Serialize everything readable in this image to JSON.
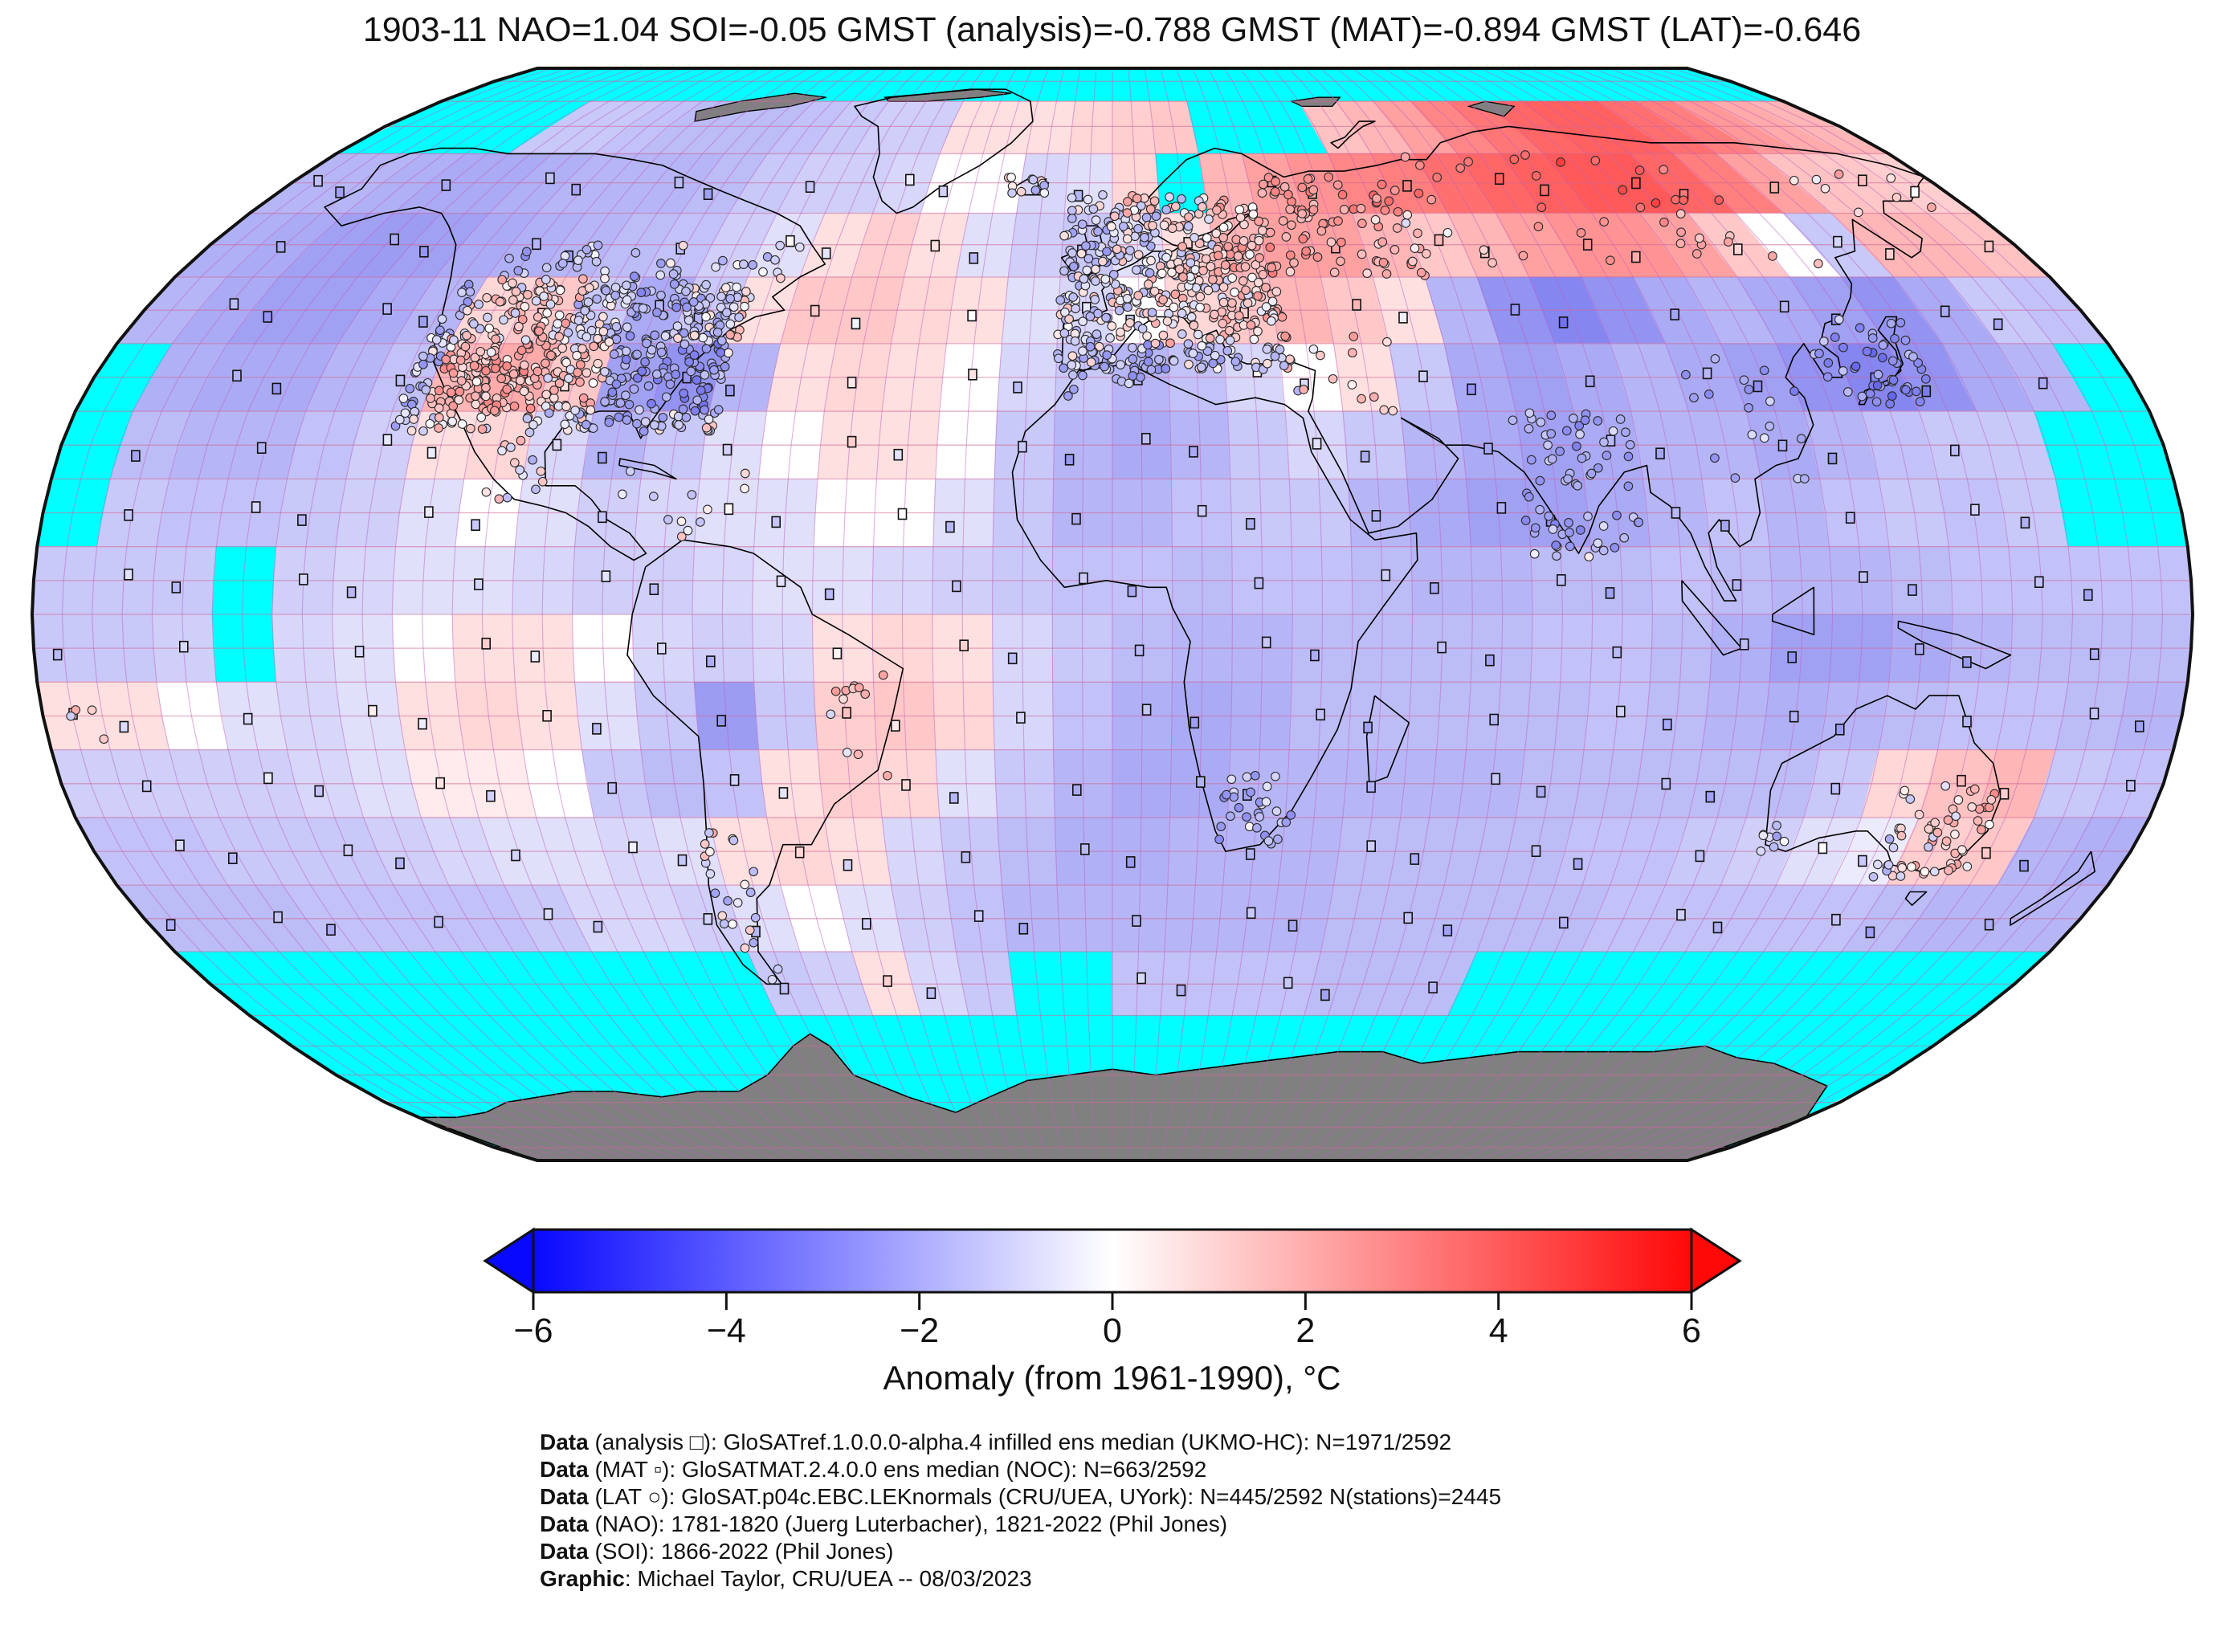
{
  "title": "1903-11 NAO=1.04 SOI=-0.05 GMST (analysis)=-0.788 GMST (MAT)=-0.894 GMST (LAT)=-0.646",
  "colorbar": {
    "label": "Anomaly (from 1961-1990), °C",
    "min": -6,
    "max": 6,
    "tick_values": [
      -6,
      -4,
      -2,
      0,
      2,
      4,
      6
    ],
    "tick_labels": [
      "−6",
      "−4",
      "−2",
      "0",
      "2",
      "4",
      "6"
    ],
    "left_color": "#0808ff",
    "mid_color": "#ffffff",
    "right_color": "#ff0808",
    "outline_color": "#111111"
  },
  "footnotes": [
    {
      "prefix": "Data",
      "rest": " (analysis □): GloSATref.1.0.0.0-alpha.4 infilled ens median (UKMO-HC): N=1971/2592"
    },
    {
      "prefix": "Data",
      "rest": " (MAT ▫): GloSATMAT.2.4.0.0 ens median (NOC): N=663/2592"
    },
    {
      "prefix": "Data",
      "rest": " (LAT ○): GloSAT.p04c.EBC.LEKnormals (CRU/UEA, UYork): N=445/2592 N(stations)=2445"
    },
    {
      "prefix": "Data",
      "rest": " (NAO): 1781-1820 (Juerg Luterbacher), 1821-2022 (Phil Jones)"
    },
    {
      "prefix": "Data",
      "rest": " (SOI): 1866-2022 (Phil Jones)"
    },
    {
      "prefix": "Graphic",
      "rest": ": Michael Taylor, CRU/UEA -- 08/03/2023"
    }
  ],
  "chart_data": {
    "type": "heatmap",
    "projection": "robinson",
    "period": "1903-11",
    "anomaly_reference": "1961-1990",
    "units": "°C",
    "stats": {
      "NAO": 1.04,
      "SOI": -0.05,
      "GMST_analysis": -0.788,
      "GMST_MAT": -0.894,
      "GMST_LAT": -0.646
    },
    "counts": {
      "analysis": "1971/2592",
      "MAT": "663/2592",
      "LAT": "445/2592",
      "stations": 2445
    },
    "colormap": "blue-white-red",
    "value_range": [
      -6,
      6
    ],
    "no_data_color": "#00ffff",
    "land_no_data_color": "#808080",
    "lat_start": 90,
    "lat_step": -10,
    "lon_start": -180,
    "lon_step": 10,
    "grid": [
      [
        null,
        null,
        null,
        null,
        null,
        null,
        null,
        null,
        null,
        null,
        null,
        null,
        null,
        null,
        null,
        null,
        null,
        null,
        null,
        null,
        null,
        null,
        null,
        null,
        null,
        null,
        null,
        null,
        null,
        null,
        null,
        null,
        null,
        null,
        null,
        null
      ],
      [
        null,
        null,
        null,
        null,
        -0.5,
        -0.5,
        -0.6,
        -0.7,
        -0.7,
        -0.7,
        -0.6,
        -0.5,
        -0.4,
        -0.4,
        0.2,
        0.2,
        0.2,
        0.3,
        0.4,
        0.5,
        null,
        null,
        null,
        0.6,
        0.8,
        1.2,
        1.8,
        2.2,
        2.6,
        2.8,
        2.8,
        2.4,
        2.0,
        1.4,
        1.0,
        0.8
      ],
      [
        -0.8,
        -0.8,
        -0.9,
        -1.0,
        -1.0,
        -0.9,
        -0.8,
        -0.8,
        -0.8,
        -0.7,
        -0.5,
        -0.4,
        -0.4,
        -0.3,
        0.0,
        0.0,
        -0.3,
        -0.2,
        0.3,
        null,
        0.8,
        1.2,
        1.5,
        1.8,
        2.0,
        2.4,
        2.6,
        2.8,
        3.0,
        3.0,
        2.6,
        2.0,
        1.2,
        0.6,
        0.5,
        0.4
      ],
      [
        -0.9,
        -1.0,
        -1.2,
        -1.3,
        -1.2,
        -1.0,
        -0.9,
        -0.8,
        -0.7,
        -0.6,
        -0.4,
        -0.2,
        0.2,
        0.4,
        0.2,
        -0.2,
        -0.4,
        -0.5,
        -0.2,
        0.2,
        0.8,
        1.2,
        1.2,
        0.8,
        0.5,
        0.8,
        1.2,
        1.5,
        1.5,
        1.2,
        0.5,
        0.0,
        -0.5,
        0.8,
        0.8,
        0.6
      ],
      [
        -0.8,
        -1.0,
        -1.2,
        -1.2,
        -1.0,
        -0.8,
        0.3,
        0.5,
        -0.5,
        -1.0,
        -0.5,
        0.2,
        0.5,
        0.5,
        0.3,
        0.2,
        -0.2,
        -0.3,
        0.0,
        0.3,
        0.5,
        0.8,
        0.5,
        0.2,
        -0.8,
        -1.5,
        -1.8,
        -1.5,
        -1.0,
        -0.8,
        -1.0,
        -1.2,
        -1.5,
        -1.0,
        -0.5,
        -0.6
      ],
      [
        null,
        -0.9,
        -1.0,
        -1.0,
        -0.8,
        -0.6,
        0.8,
        1.0,
        0.5,
        -1.2,
        -1.5,
        -0.8,
        0.2,
        0.3,
        0.2,
        0.0,
        -0.3,
        -0.5,
        -0.8,
        -0.6,
        -0.3,
        0.0,
        0.2,
        -0.5,
        -1.0,
        -1.2,
        -1.0,
        -0.8,
        -1.0,
        -1.2,
        -1.5,
        -1.8,
        -1.5,
        -1.0,
        -0.8,
        null
      ],
      [
        null,
        -0.7,
        -0.8,
        -0.8,
        -0.6,
        -0.4,
        0.2,
        0.3,
        -0.3,
        -0.8,
        -0.5,
        -0.2,
        0.0,
        0.2,
        0.2,
        0.0,
        -0.5,
        -0.8,
        -1.0,
        -0.8,
        -0.5,
        -0.3,
        -0.5,
        -0.8,
        -1.0,
        -1.2,
        -1.0,
        -0.8,
        -0.8,
        -1.0,
        -0.8,
        -0.6,
        -0.5,
        -0.5,
        null,
        null
      ],
      [
        null,
        -0.5,
        -0.6,
        -0.6,
        -0.5,
        -0.4,
        -0.2,
        0.0,
        -0.2,
        -0.4,
        -0.3,
        -0.2,
        -0.2,
        0.0,
        0.0,
        -0.2,
        -0.5,
        -0.8,
        -0.8,
        -0.6,
        -0.5,
        -0.5,
        -0.8,
        -1.0,
        -1.2,
        -1.2,
        -1.0,
        -0.8,
        -0.6,
        -0.8,
        -0.6,
        -0.5,
        -0.6,
        -0.5,
        null,
        null
      ],
      [
        -0.5,
        -0.5,
        -0.5,
        null,
        -0.4,
        -0.3,
        -0.2,
        -0.2,
        -0.3,
        -0.4,
        -0.4,
        -0.3,
        -0.2,
        -0.2,
        -0.3,
        -0.4,
        -0.5,
        -0.6,
        -0.6,
        -0.7,
        -0.6,
        -0.6,
        -0.7,
        -0.8,
        -0.8,
        -0.7,
        -0.7,
        -0.6,
        -0.7,
        -0.8,
        -0.8,
        -0.7,
        -0.6,
        -0.6,
        -0.6,
        -0.6
      ],
      [
        -0.5,
        -0.5,
        -0.4,
        null,
        -0.3,
        -0.2,
        0.0,
        0.2,
        0.2,
        0.0,
        -0.3,
        -0.4,
        -0.3,
        0.2,
        0.3,
        0.2,
        -0.3,
        -0.5,
        -0.7,
        -0.8,
        -0.8,
        -0.7,
        -0.7,
        -0.7,
        -0.7,
        -0.6,
        -0.6,
        -0.7,
        -0.9,
        -1.2,
        -1.2,
        -1.0,
        -0.8,
        -0.7,
        -0.7,
        -0.7
      ],
      [
        0.2,
        0.2,
        0.0,
        -0.2,
        -0.3,
        -0.2,
        0.2,
        0.3,
        0.2,
        -0.2,
        -0.5,
        -1.3,
        -0.5,
        0.4,
        0.5,
        0.3,
        -0.3,
        -0.6,
        -0.9,
        -1.0,
        -0.9,
        -0.7,
        -0.7,
        -0.7,
        -0.7,
        -0.7,
        -0.6,
        -0.7,
        -0.8,
        -0.9,
        -0.8,
        -0.7,
        -0.6,
        -0.6,
        -0.7,
        -0.8
      ],
      [
        -0.4,
        -0.4,
        -0.4,
        -0.4,
        -0.3,
        -0.2,
        0.1,
        0.1,
        0.0,
        -0.5,
        -0.7,
        -0.6,
        0.2,
        0.4,
        0.3,
        -0.2,
        -0.5,
        -0.8,
        -1.0,
        -1.0,
        -0.8,
        -0.8,
        -0.8,
        -0.8,
        -0.8,
        -0.7,
        -0.7,
        -0.7,
        -0.7,
        -0.7,
        -0.5,
        0.3,
        0.6,
        0.8,
        -0.5,
        -0.6
      ],
      [
        -0.6,
        -0.6,
        -0.5,
        -0.5,
        -0.5,
        -0.4,
        -0.3,
        -0.2,
        -0.2,
        -0.3,
        -0.2,
        0.2,
        0.3,
        0.2,
        -0.3,
        -0.5,
        -0.7,
        -0.9,
        -0.9,
        -0.8,
        -0.8,
        -0.8,
        -0.7,
        -0.7,
        -0.7,
        -0.7,
        -0.6,
        -0.6,
        -0.5,
        -0.4,
        -0.2,
        -0.1,
        0.4,
        0.5,
        -0.8,
        -0.9
      ],
      [
        -0.7,
        -0.7,
        -0.7,
        -0.6,
        -0.6,
        -0.6,
        -0.6,
        -0.5,
        -0.3,
        -0.3,
        -0.4,
        -0.2,
        0.0,
        -0.2,
        -0.4,
        -0.6,
        -0.8,
        -0.8,
        -0.8,
        -0.8,
        -0.8,
        -0.8,
        -0.7,
        -0.7,
        -0.7,
        -0.7,
        -0.7,
        -0.6,
        -0.6,
        -0.6,
        -0.6,
        -0.6,
        -0.7,
        -0.8,
        -0.8,
        -0.8
      ],
      [
        null,
        null,
        null,
        null,
        null,
        null,
        null,
        null,
        null,
        null,
        null,
        -0.5,
        -0.4,
        0.2,
        -0.3,
        -0.5,
        null,
        null,
        -0.6,
        -0.6,
        -0.6,
        -0.6,
        -0.7,
        -0.7,
        -0.7,
        null,
        null,
        null,
        null,
        null,
        null,
        null,
        null,
        null,
        null,
        null
      ],
      [
        null,
        null,
        null,
        null,
        null,
        null,
        null,
        null,
        null,
        null,
        null,
        null,
        null,
        null,
        null,
        null,
        null,
        null,
        null,
        null,
        null,
        null,
        null,
        null,
        null,
        null,
        null,
        null,
        null,
        null,
        null,
        null,
        null,
        null,
        null,
        null
      ],
      [
        null,
        null,
        null,
        null,
        null,
        null,
        null,
        null,
        null,
        null,
        null,
        null,
        null,
        null,
        null,
        null,
        null,
        null,
        null,
        null,
        null,
        null,
        null,
        null,
        null,
        null,
        null,
        null,
        null,
        null,
        null,
        null,
        null,
        null,
        null,
        null
      ],
      [
        null,
        null,
        null,
        null,
        null,
        null,
        null,
        null,
        null,
        null,
        null,
        null,
        null,
        null,
        null,
        null,
        null,
        null,
        null,
        null,
        null,
        null,
        null,
        null,
        null,
        null,
        null,
        null,
        null,
        null,
        null,
        null,
        null,
        null,
        null,
        null
      ]
    ],
    "station_clusters": [
      {
        "name": "usa",
        "lon0": -124,
        "lat0": 27,
        "lon1": -68,
        "lat1": 49,
        "count": 600
      },
      {
        "name": "canada-south",
        "lon0": -120,
        "lat0": 49,
        "lon1": -62,
        "lat1": 55,
        "count": 50
      },
      {
        "name": "mexico",
        "lon0": -106,
        "lat0": 17,
        "lon1": -96,
        "lat1": 27,
        "count": 15
      },
      {
        "name": "caribbean",
        "lon0": -85,
        "lat0": 10,
        "lon1": -62,
        "lat1": 23,
        "count": 12
      },
      {
        "name": "europe",
        "lon0": -10,
        "lat0": 36,
        "lon1": 32,
        "lat1": 63,
        "count": 520
      },
      {
        "name": "iceland",
        "lon0": -23,
        "lat0": 63,
        "lon1": -14,
        "lat1": 66,
        "count": 12
      },
      {
        "name": "west-russia",
        "lon0": 32,
        "lat0": 50,
        "lon1": 62,
        "lat1": 66,
        "count": 90
      },
      {
        "name": "siberia",
        "lon0": 62,
        "lat0": 52,
        "lon1": 140,
        "lat1": 70,
        "count": 40
      },
      {
        "name": "chukotka",
        "lon0": 150,
        "lat0": 60,
        "lon1": 178,
        "lat1": 68,
        "count": 8
      },
      {
        "name": "middle-east",
        "lon0": 28,
        "lat0": 30,
        "lon1": 52,
        "lat1": 42,
        "count": 14
      },
      {
        "name": "india",
        "lon0": 69,
        "lat0": 8,
        "lon1": 89,
        "lat1": 30,
        "count": 70
      },
      {
        "name": "japan-korea",
        "lon0": 126,
        "lat0": 31,
        "lon1": 145,
        "lat1": 44,
        "count": 50
      },
      {
        "name": "china-se",
        "lon0": 100,
        "lat0": 20,
        "lon1": 122,
        "lat1": 38,
        "count": 18
      },
      {
        "name": "australia-se",
        "lon0": 136,
        "lat0": -39,
        "lon1": 153,
        "lat1": -25,
        "count": 60
      },
      {
        "name": "australia-w",
        "lon0": 114,
        "lat0": -35,
        "lon1": 120,
        "lat1": -30,
        "count": 8
      },
      {
        "name": "south-africa",
        "lon0": 17,
        "lat0": -34,
        "lon1": 31,
        "lat1": -23,
        "count": 30
      },
      {
        "name": "patagonia-andes",
        "lon0": -73,
        "lat0": -55,
        "lon1": -64,
        "lat1": -32,
        "count": 24
      },
      {
        "name": "brazil-coast",
        "lon0": -50,
        "lat0": -25,
        "lon1": -38,
        "lat1": -8,
        "count": 12
      },
      {
        "name": "north-africa-coast",
        "lon0": -8,
        "lat0": 32,
        "lon1": 10,
        "lat1": 37,
        "count": 10
      },
      {
        "name": "pacific-islands",
        "lon0": -176,
        "lat0": -20,
        "lon1": -168,
        "lat1": -13,
        "count": 4
      }
    ]
  }
}
